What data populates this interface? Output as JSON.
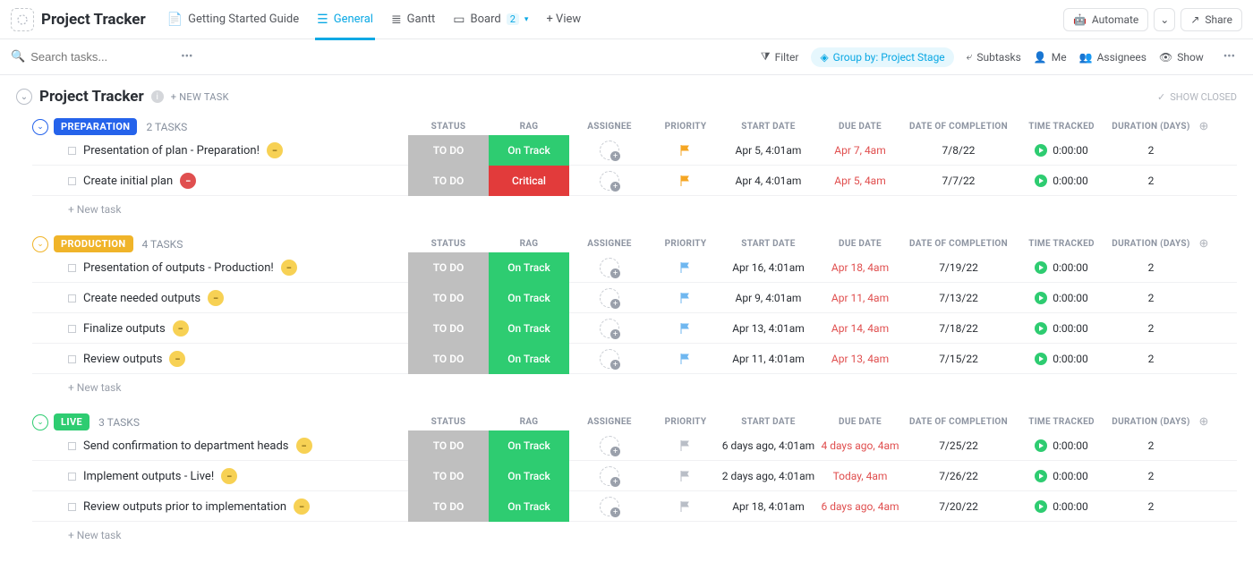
{
  "topbar": {
    "project_title": "Project Tracker",
    "views": {
      "guide": "Getting Started Guide",
      "general": "General",
      "gantt": "Gantt",
      "board": "Board",
      "board_badge": "2",
      "add_view": "+  View"
    },
    "automate": "Automate",
    "share": "Share"
  },
  "toolbar": {
    "search_placeholder": "Search tasks...",
    "filter": "Filter",
    "group_by": "Group by: Project Stage",
    "subtasks": "Subtasks",
    "me": "Me",
    "assignees": "Assignees",
    "show": "Show"
  },
  "list": {
    "title": "Project Tracker",
    "new_task_top": "+ NEW TASK",
    "show_closed": "SHOW CLOSED"
  },
  "columns": {
    "status": "STATUS",
    "rag": "RAG",
    "assignee": "ASSIGNEE",
    "priority": "PRIORITY",
    "start_date": "START DATE",
    "due_date": "DUE DATE",
    "completion": "DATE OF COMPLETION",
    "time_tracked": "TIME TRACKED",
    "duration": "DURATION (DAYS)"
  },
  "new_task_label": "+ New task",
  "colors": {
    "prep_pill": "#2563eb",
    "prep_border": "#2563eb",
    "prod_pill": "#f0b429",
    "prod_border": "#f0b429",
    "live_pill": "#2ecc71",
    "live_border": "#2ecc71",
    "ontrack": "#2ecc71",
    "critical": "#e23b3b",
    "status_bg": "#bfbfbf",
    "flag_orange": "#f5a623",
    "flag_blue": "#6fb7f0",
    "flag_grey": "#b9bec7",
    "badge_yellow_bg": "#f7d154",
    "badge_yellow_fg": "#8a6d1a",
    "badge_red_bg": "#e04f4f"
  },
  "groups": [
    {
      "stage": "PREPARATION",
      "count": "2 TASKS",
      "pill_color": "#2563eb",
      "chev_color": "#2563eb",
      "tasks": [
        {
          "name": "Presentation of plan - Preparation!",
          "badge": "minus-yellow",
          "status": "TO DO",
          "rag": "On Track",
          "rag_color": "#2ecc71",
          "flag": "#f5a623",
          "start": "Apr 5, 4:01am",
          "due": "Apr 7, 4am",
          "done": "7/8/22",
          "time": "0:00:00",
          "dur": "2"
        },
        {
          "name": "Create initial plan",
          "badge": "minus-red",
          "status": "TO DO",
          "rag": "Critical",
          "rag_color": "#e23b3b",
          "flag": "#f5a623",
          "start": "Apr 4, 4:01am",
          "due": "Apr 5, 4am",
          "done": "7/7/22",
          "time": "0:00:00",
          "dur": "2"
        }
      ]
    },
    {
      "stage": "PRODUCTION",
      "count": "4 TASKS",
      "pill_color": "#f0b429",
      "chev_color": "#f0b429",
      "tasks": [
        {
          "name": "Presentation of outputs - Production!",
          "badge": "minus-yellow",
          "status": "TO DO",
          "rag": "On Track",
          "rag_color": "#2ecc71",
          "flag": "#6fb7f0",
          "start": "Apr 16, 4:01am",
          "due": "Apr 18, 4am",
          "done": "7/19/22",
          "time": "0:00:00",
          "dur": "2"
        },
        {
          "name": "Create needed outputs",
          "badge": "minus-yellow",
          "status": "TO DO",
          "rag": "On Track",
          "rag_color": "#2ecc71",
          "flag": "#6fb7f0",
          "start": "Apr 9, 4:01am",
          "due": "Apr 11, 4am",
          "done": "7/13/22",
          "time": "0:00:00",
          "dur": "2"
        },
        {
          "name": "Finalize outputs",
          "badge": "minus-yellow",
          "status": "TO DO",
          "rag": "On Track",
          "rag_color": "#2ecc71",
          "flag": "#6fb7f0",
          "start": "Apr 13, 4:01am",
          "due": "Apr 14, 4am",
          "done": "7/18/22",
          "time": "0:00:00",
          "dur": "2"
        },
        {
          "name": "Review outputs",
          "badge": "minus-yellow",
          "status": "TO DO",
          "rag": "On Track",
          "rag_color": "#2ecc71",
          "flag": "#6fb7f0",
          "start": "Apr 11, 4:01am",
          "due": "Apr 13, 4am",
          "done": "7/15/22",
          "time": "0:00:00",
          "dur": "2"
        }
      ]
    },
    {
      "stage": "LIVE",
      "count": "3 TASKS",
      "pill_color": "#2ecc71",
      "chev_color": "#2ecc71",
      "tasks": [
        {
          "name": "Send confirmation to department heads",
          "badge": "minus-yellow",
          "status": "TO DO",
          "rag": "On Track",
          "rag_color": "#2ecc71",
          "flag": "#b9bec7",
          "start": "6 days ago, 4:01am",
          "due": "4 days ago, 4am",
          "done": "7/25/22",
          "time": "0:00:00",
          "dur": "2"
        },
        {
          "name": "Implement outputs - Live!",
          "badge": "minus-yellow",
          "status": "TO DO",
          "rag": "On Track",
          "rag_color": "#2ecc71",
          "flag": "#b9bec7",
          "start": "2 days ago, 4:01am",
          "due": "Today, 4am",
          "done": "7/26/22",
          "time": "0:00:00",
          "dur": "2"
        },
        {
          "name": "Review outputs prior to implementation",
          "badge": "minus-yellow",
          "status": "TO DO",
          "rag": "On Track",
          "rag_color": "#2ecc71",
          "flag": "#b9bec7",
          "start": "Apr 18, 4:01am",
          "due": "6 days ago, 4am",
          "done": "7/20/22",
          "time": "0:00:00",
          "dur": "2"
        }
      ]
    }
  ]
}
